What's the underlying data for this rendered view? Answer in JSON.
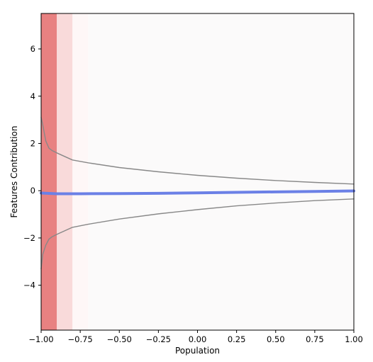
{
  "chart_data": {
    "type": "line",
    "title": "",
    "xlabel": "Population",
    "ylabel": "Features Contribution",
    "xlim": [
      -1.0,
      1.0
    ],
    "ylim": [
      -5.9,
      7.5
    ],
    "grid": false,
    "x_ticks": [
      {
        "value": -1.0,
        "label": "−1.00"
      },
      {
        "value": -0.75,
        "label": "−0.75"
      },
      {
        "value": -0.5,
        "label": "−0.50"
      },
      {
        "value": -0.25,
        "label": "−0.25"
      },
      {
        "value": 0.0,
        "label": "0.00"
      },
      {
        "value": 0.25,
        "label": "0.25"
      },
      {
        "value": 0.5,
        "label": "0.50"
      },
      {
        "value": 0.75,
        "label": "0.75"
      },
      {
        "value": 1.0,
        "label": "1.00"
      }
    ],
    "y_ticks": [
      {
        "value": -4,
        "label": "−4"
      },
      {
        "value": -2,
        "label": "−2"
      },
      {
        "value": 0,
        "label": "0"
      },
      {
        "value": 2,
        "label": "2"
      },
      {
        "value": 4,
        "label": "4"
      },
      {
        "value": 6,
        "label": "6"
      }
    ],
    "density_bands": [
      {
        "x0": -1.0,
        "x1": -0.9,
        "color": "#e57373",
        "opacity": 0.9
      },
      {
        "x0": -0.9,
        "x1": -0.8,
        "color": "#f4b6b6",
        "opacity": 0.5
      },
      {
        "x0": -0.8,
        "x1": -0.7,
        "color": "#fbe7e7",
        "opacity": 0.35
      },
      {
        "x0": -0.7,
        "x1": 1.0,
        "color": "#f7f3f3",
        "opacity": 0.45
      }
    ],
    "series": [
      {
        "role": "mean",
        "color": "#6b80e6",
        "x": [
          -1.0,
          -0.9,
          -0.75,
          -0.5,
          -0.25,
          0.0,
          0.25,
          0.5,
          0.75,
          1.0
        ],
        "y": [
          -0.1,
          -0.13,
          -0.13,
          -0.12,
          -0.11,
          -0.09,
          -0.07,
          -0.05,
          -0.03,
          -0.01
        ]
      },
      {
        "role": "upper-bound",
        "color": "#888888",
        "x": [
          -1.0,
          -0.99,
          -0.97,
          -0.95,
          -0.93,
          -0.9,
          -0.85,
          -0.8,
          -0.7,
          -0.5,
          -0.25,
          0.0,
          0.25,
          0.5,
          0.75,
          1.0
        ],
        "y": [
          3.1,
          2.8,
          2.1,
          1.8,
          1.7,
          1.6,
          1.45,
          1.3,
          1.18,
          0.98,
          0.8,
          0.65,
          0.53,
          0.43,
          0.35,
          0.28
        ]
      },
      {
        "role": "lower-bound",
        "color": "#888888",
        "x": [
          -1.0,
          -0.99,
          -0.97,
          -0.95,
          -0.93,
          -0.9,
          -0.85,
          -0.8,
          -0.7,
          -0.5,
          -0.25,
          0.0,
          0.25,
          0.5,
          0.75,
          1.0
        ],
        "y": [
          -3.3,
          -2.7,
          -2.3,
          -2.05,
          -1.95,
          -1.85,
          -1.7,
          -1.55,
          -1.42,
          -1.2,
          -0.98,
          -0.8,
          -0.64,
          -0.52,
          -0.42,
          -0.35
        ]
      }
    ]
  }
}
